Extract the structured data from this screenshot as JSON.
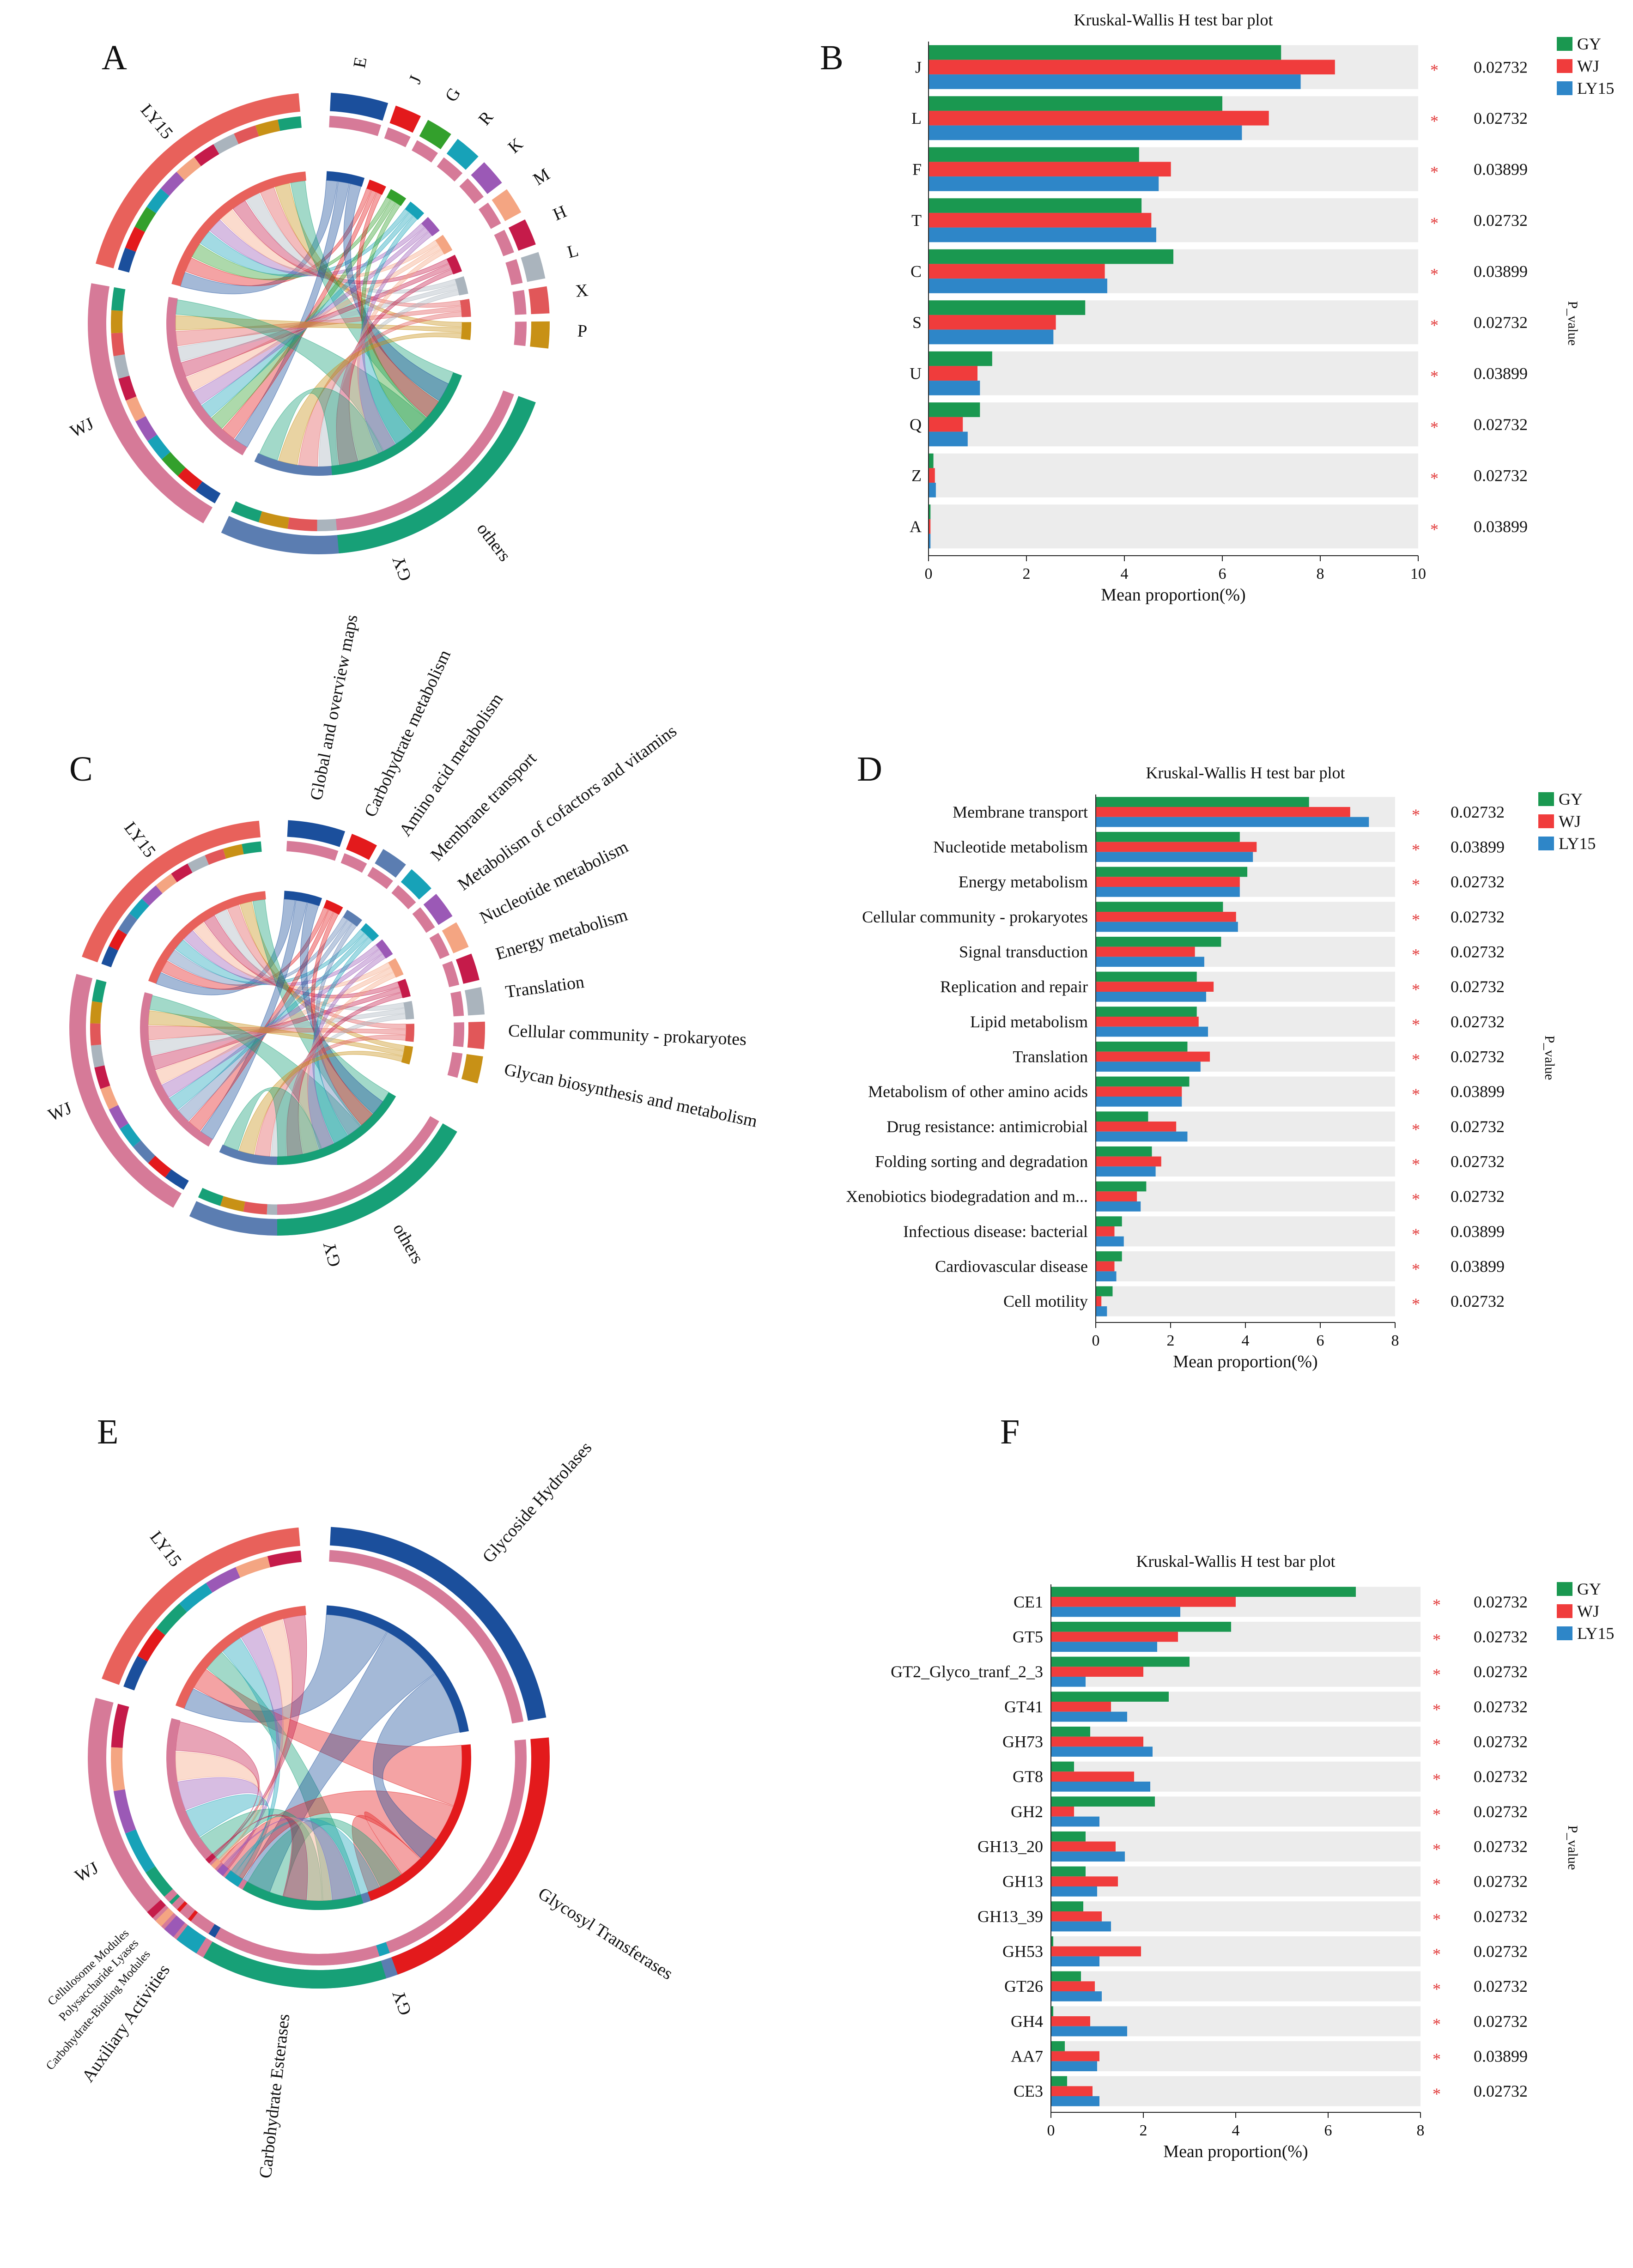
{
  "colors": {
    "GY": "#1a9850",
    "WJ": "#f03c3c",
    "LY15": "#2e86c8",
    "bg": "#ececec"
  },
  "panels": [
    {
      "id": "A",
      "letter": "A",
      "kind": "chord"
    },
    {
      "id": "B",
      "letter": "B",
      "kind": "bar"
    },
    {
      "id": "C",
      "letter": "C",
      "kind": "chord"
    },
    {
      "id": "D",
      "letter": "D",
      "kind": "bar"
    },
    {
      "id": "E",
      "letter": "E",
      "kind": "chord"
    },
    {
      "id": "F",
      "letter": "F",
      "kind": "bar"
    }
  ],
  "chord_labels": {
    "A": {
      "samples": [
        "LY15",
        "WJ",
        "GY"
      ],
      "categories": [
        "E",
        "J",
        "G",
        "R",
        "K",
        "M",
        "H",
        "L",
        "X",
        "P",
        "others"
      ]
    },
    "C": {
      "samples": [
        "LY15",
        "WJ",
        "GY"
      ],
      "categories": [
        "Global and overview maps",
        "Carbohydrate metabolism",
        "Amino acid metabolism",
        "Membrane transport",
        "Metabolism of cofactors and vitamins",
        "Nucleotide metabolism",
        "Energy metabolism",
        "Translation",
        "Cellular community - prokaryotes",
        "Glycan biosynthesis and metabolism",
        "others"
      ]
    },
    "E": {
      "samples": [
        "LY15",
        "WJ",
        "GY"
      ],
      "categories": [
        "Glycoside Hydrolases",
        "Glycosyl Transferases",
        "Carbohydrate Esterases",
        "Auxiliary Activities",
        "Carbohydrate-Binding Modules",
        "Polysaccharide Lyases",
        "Cellulosome Modules"
      ]
    }
  },
  "chart_data": [
    {
      "panel": "B",
      "type": "bar",
      "title": "Kruskal-Wallis H test bar plot",
      "xlabel": "Mean proportion(%)",
      "ylabel": "",
      "pvalue_label": "P_value",
      "xlim": [
        0,
        10
      ],
      "xticks": [
        0,
        2,
        4,
        6,
        8,
        10
      ],
      "legend": [
        "GY",
        "WJ",
        "LY15"
      ],
      "categories": [
        "J",
        "L",
        "F",
        "T",
        "C",
        "S",
        "U",
        "Q",
        "Z",
        "A"
      ],
      "series": [
        {
          "name": "GY",
          "values": [
            7.2,
            6.0,
            4.3,
            4.35,
            5.0,
            3.2,
            1.3,
            1.05,
            0.1,
            0.04
          ]
        },
        {
          "name": "WJ",
          "values": [
            8.3,
            6.95,
            4.95,
            4.55,
            3.6,
            2.6,
            1.0,
            0.7,
            0.13,
            0.04
          ]
        },
        {
          "name": "LY15",
          "values": [
            7.6,
            6.4,
            4.7,
            4.65,
            3.65,
            2.55,
            1.05,
            0.8,
            0.15,
            0.04
          ]
        }
      ],
      "pvalues": [
        "0.02732",
        "0.02732",
        "0.03899",
        "0.02732",
        "0.03899",
        "0.02732",
        "0.03899",
        "0.02732",
        "0.02732",
        "0.03899"
      ],
      "star": "*"
    },
    {
      "panel": "D",
      "type": "bar",
      "title": "Kruskal-Wallis H test bar plot",
      "xlabel": "Mean proportion(%)",
      "ylabel": "",
      "pvalue_label": "P_value",
      "xlim": [
        0,
        8
      ],
      "xticks": [
        0,
        2,
        4,
        6,
        8
      ],
      "legend": [
        "GY",
        "WJ",
        "LY15"
      ],
      "categories": [
        "Membrane transport",
        "Nucleotide metabolism",
        "Energy metabolism",
        "Cellular community - prokaryotes",
        "Signal transduction",
        "Replication and repair",
        "Lipid metabolism",
        "Translation",
        "Metabolism of other amino acids",
        "Drug resistance: antimicrobial",
        "Folding sorting and degradation",
        "Xenobiotics biodegradation and m...",
        "Infectious disease: bacterial",
        "Cardiovascular disease",
        "Cell motility"
      ],
      "series": [
        {
          "name": "GY",
          "values": [
            5.7,
            3.85,
            4.05,
            3.4,
            3.35,
            2.7,
            2.7,
            2.45,
            2.5,
            1.4,
            1.5,
            1.35,
            0.7,
            0.7,
            0.45
          ]
        },
        {
          "name": "WJ",
          "values": [
            6.8,
            4.3,
            3.85,
            3.75,
            2.65,
            3.15,
            2.75,
            3.05,
            2.3,
            2.15,
            1.75,
            1.1,
            0.5,
            0.5,
            0.15
          ]
        },
        {
          "name": "LY15",
          "values": [
            7.3,
            4.2,
            3.85,
            3.8,
            2.9,
            2.95,
            3.0,
            2.8,
            2.3,
            2.45,
            1.6,
            1.2,
            0.75,
            0.55,
            0.3
          ]
        }
      ],
      "pvalues": [
        "0.02732",
        "0.03899",
        "0.02732",
        "0.02732",
        "0.02732",
        "0.02732",
        "0.02732",
        "0.02732",
        "0.03899",
        "0.02732",
        "0.02732",
        "0.02732",
        "0.03899",
        "0.03899",
        "0.02732"
      ],
      "star": "*"
    },
    {
      "panel": "F",
      "type": "bar",
      "title": "Kruskal-Wallis H test bar plot",
      "xlabel": "Mean proportion(%)",
      "ylabel": "",
      "pvalue_label": "P_value",
      "xlim": [
        0,
        8
      ],
      "xticks": [
        0,
        2,
        4,
        6,
        8
      ],
      "legend": [
        "GY",
        "WJ",
        "LY15"
      ],
      "categories": [
        "CE1",
        "GT5",
        "GT2_Glyco_tranf_2_3",
        "GT41",
        "GH73",
        "GT8",
        "GH2",
        "GH13_20",
        "GH13",
        "GH13_39",
        "GH53",
        "GT26",
        "GH4",
        "AA7",
        "CE3"
      ],
      "series": [
        {
          "name": "GY",
          "values": [
            6.6,
            3.9,
            3.0,
            2.55,
            0.85,
            0.5,
            2.25,
            0.75,
            0.75,
            0.7,
            0.05,
            0.65,
            0.05,
            0.3,
            0.35
          ]
        },
        {
          "name": "WJ",
          "values": [
            4.0,
            2.75,
            2.0,
            1.3,
            2.0,
            1.8,
            0.5,
            1.4,
            1.45,
            1.1,
            1.95,
            0.95,
            0.85,
            1.05,
            0.9
          ]
        },
        {
          "name": "LY15",
          "values": [
            2.8,
            2.3,
            0.75,
            1.65,
            2.2,
            2.15,
            1.05,
            1.6,
            1.0,
            1.3,
            1.05,
            1.1,
            1.65,
            1.0,
            1.05
          ]
        }
      ],
      "pvalues": [
        "0.02732",
        "0.02732",
        "0.02732",
        "0.02732",
        "0.02732",
        "0.02732",
        "0.02732",
        "0.02732",
        "0.02732",
        "0.02732",
        "0.02732",
        "0.02732",
        "0.02732",
        "0.03899",
        "0.02732"
      ],
      "star": "*"
    }
  ]
}
